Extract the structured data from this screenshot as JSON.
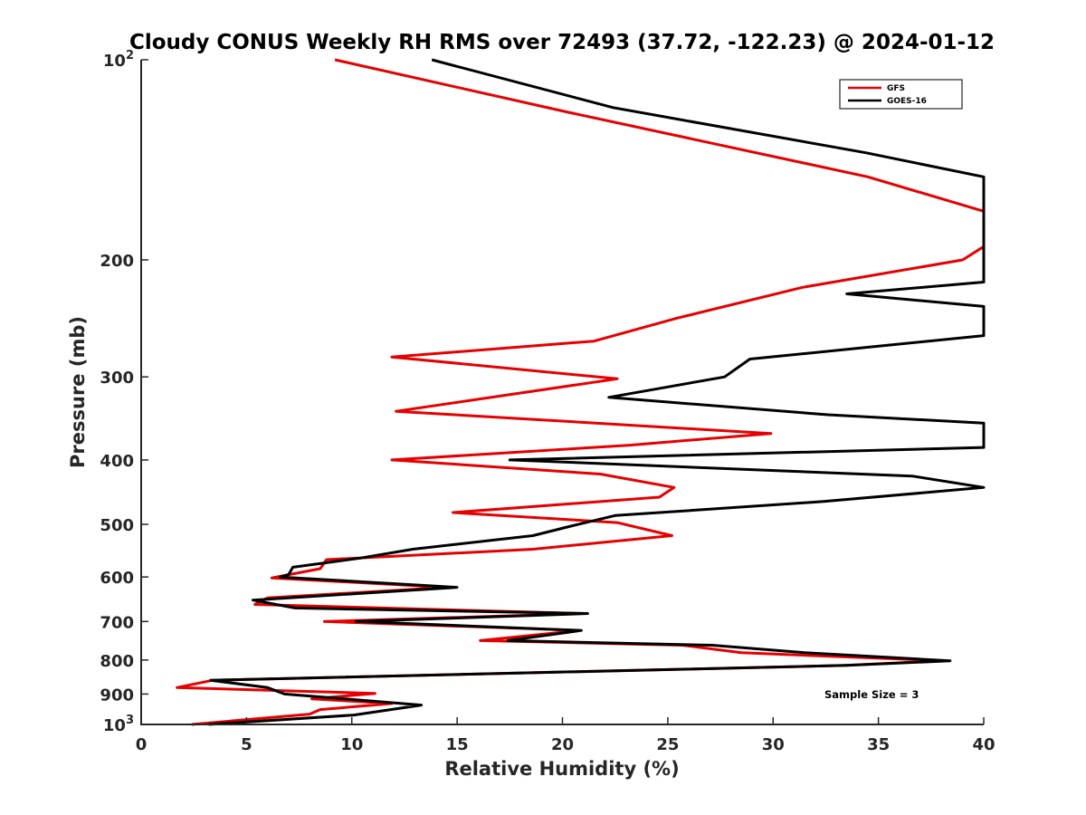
{
  "chart_data": {
    "type": "line",
    "title": "Cloudy CONUS Weekly RH RMS over 72493 (37.72, -122.23) @ 2024-01-12",
    "xlabel": "Relative Humidity (%)",
    "ylabel": "Pressure (mb)",
    "xlim": [
      0,
      40
    ],
    "ylim": [
      100,
      1000
    ],
    "y_scale": "log",
    "y_reversed": true,
    "grid": false,
    "legend_position": "top-right",
    "x_ticks": [
      "0",
      "5",
      "10",
      "15",
      "20",
      "25",
      "30",
      "35",
      "40"
    ],
    "y_ticks": [
      {
        "value": 100,
        "base": "10",
        "exp": "2"
      },
      {
        "value": 200,
        "label": "200"
      },
      {
        "value": 300,
        "label": "300"
      },
      {
        "value": 400,
        "label": "400"
      },
      {
        "value": 500,
        "label": "500"
      },
      {
        "value": 600,
        "label": "600"
      },
      {
        "value": 700,
        "label": "700"
      },
      {
        "value": 800,
        "label": "800"
      },
      {
        "value": 900,
        "label": "900"
      },
      {
        "value": 1000,
        "base": "10",
        "exp": "3"
      }
    ],
    "annotation": "Sample Size = 3",
    "series": [
      {
        "name": "GFS",
        "color": "#e60000",
        "points": [
          [
            9.2,
            100
          ],
          [
            20.3,
            120
          ],
          [
            34.5,
            150
          ],
          [
            40,
            169
          ],
          [
            40,
            191
          ],
          [
            39.0,
            200
          ],
          [
            31.4,
            220
          ],
          [
            25.4,
            245
          ],
          [
            21.5,
            265
          ],
          [
            11.9,
            280
          ],
          [
            22.6,
            302
          ],
          [
            12.1,
            338
          ],
          [
            29.9,
            365
          ],
          [
            23.2,
            380
          ],
          [
            11.9,
            400
          ],
          [
            21.8,
            420
          ],
          [
            25.3,
            440
          ],
          [
            24.6,
            455
          ],
          [
            14.8,
            480
          ],
          [
            22.6,
            497
          ],
          [
            25.2,
            520
          ],
          [
            18.6,
            545
          ],
          [
            8.8,
            565
          ],
          [
            8.5,
            583
          ],
          [
            6.2,
            602
          ],
          [
            14.5,
            622
          ],
          [
            6.0,
            645
          ],
          [
            5.4,
            660
          ],
          [
            21.0,
            681
          ],
          [
            8.7,
            700
          ],
          [
            20.8,
            722
          ],
          [
            16.1,
            748
          ],
          [
            25.7,
            760
          ],
          [
            28.5,
            780
          ],
          [
            38.1,
            802
          ],
          [
            33.4,
            815
          ],
          [
            3.4,
            858
          ],
          [
            1.7,
            880
          ],
          [
            11.1,
            898
          ],
          [
            8.1,
            915
          ],
          [
            11.9,
            930
          ],
          [
            8.5,
            950
          ],
          [
            8.0,
            965
          ],
          [
            2.4,
            1000
          ]
        ]
      },
      {
        "name": "GOES-16",
        "color": "#000000",
        "points": [
          [
            13.8,
            100
          ],
          [
            22.4,
            118
          ],
          [
            34.4,
            138
          ],
          [
            40,
            150
          ],
          [
            40,
            216
          ],
          [
            33.5,
            225
          ],
          [
            40,
            235
          ],
          [
            40,
            260
          ],
          [
            28.9,
            282
          ],
          [
            27.7,
            300
          ],
          [
            22.2,
            322
          ],
          [
            32.6,
            342
          ],
          [
            40,
            352
          ],
          [
            40,
            383
          ],
          [
            17.5,
            400
          ],
          [
            36.6,
            423
          ],
          [
            40,
            440
          ],
          [
            32.4,
            462
          ],
          [
            22.5,
            485
          ],
          [
            20.4,
            503
          ],
          [
            18.6,
            520
          ],
          [
            12.9,
            545
          ],
          [
            10.4,
            562
          ],
          [
            7.2,
            580
          ],
          [
            7.0,
            595
          ],
          [
            6.6,
            600
          ],
          [
            15.0,
            622
          ],
          [
            5.3,
            650
          ],
          [
            7.3,
            668
          ],
          [
            21.2,
            681
          ],
          [
            10.2,
            700
          ],
          [
            20.9,
            722
          ],
          [
            17.4,
            748
          ],
          [
            27.1,
            760
          ],
          [
            31.5,
            780
          ],
          [
            38.4,
            802
          ],
          [
            33.5,
            815
          ],
          [
            3.3,
            858
          ],
          [
            6.0,
            880
          ],
          [
            6.8,
            900
          ],
          [
            13.3,
            935
          ],
          [
            10.1,
            968
          ],
          [
            3.2,
            1000
          ]
        ]
      }
    ]
  }
}
